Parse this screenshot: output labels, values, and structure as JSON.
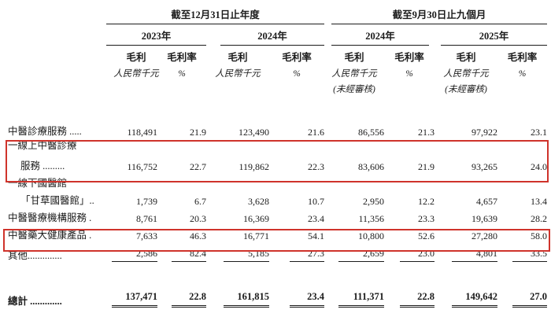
{
  "colors": {
    "text": "#1b1b1b",
    "highlight_red": "#cf332b",
    "rule": "#1b1b1b",
    "background": "#ffffff"
  },
  "header": {
    "group1": {
      "title": "截至12月31日止年度",
      "years": [
        "2023年",
        "2024年"
      ]
    },
    "group2": {
      "title": "截至9月30日止九個月",
      "years": [
        "2024年",
        "2025年"
      ]
    },
    "gross_profit_label": "毛利",
    "margin_label": "毛利率",
    "currency_label": "人民幣千元",
    "percent_label": "%",
    "unaudited_label": "(未經審核)"
  },
  "table": {
    "rows": [
      {
        "label": "中醫診療服務 .....",
        "values": [
          "118,491",
          "21.9",
          "123,490",
          "21.6",
          "86,556",
          "21.3",
          "97,922",
          "23.1"
        ],
        "highlighted": false
      },
      {
        "label": "一線上中醫診療",
        "label2": "服務 .........",
        "values": [
          "116,752",
          "22.7",
          "119,862",
          "22.3",
          "83,606",
          "21.9",
          "93,265",
          "24.0"
        ],
        "highlighted": true
      },
      {
        "label": "一線下國醫館",
        "label2": "「甘草國醫館」..",
        "values": [
          "1,739",
          "6.7",
          "3,628",
          "10.7",
          "2,950",
          "12.2",
          "4,657",
          "13.4"
        ],
        "highlighted": false
      },
      {
        "label": "中醫醫療機構服務 .",
        "values": [
          "8,761",
          "20.3",
          "16,369",
          "23.4",
          "11,356",
          "23.3",
          "19,639",
          "28.2"
        ],
        "highlighted": false
      },
      {
        "label": "中醫藥大健康產品 .",
        "values": [
          "7,633",
          "46.3",
          "16,771",
          "54.1",
          "10,800",
          "52.6",
          "27,280",
          "58.0"
        ],
        "highlighted": true
      },
      {
        "label": "其他..............",
        "values": [
          "2,586",
          "82.4",
          "5,185",
          "27.3",
          "2,659",
          "23.0",
          "4,801",
          "33.5"
        ],
        "highlighted": false
      }
    ],
    "total": {
      "label": "總計 .............",
      "values": [
        "137,471",
        "22.8",
        "161,815",
        "23.4",
        "111,371",
        "22.8",
        "149,642",
        "27.0"
      ]
    }
  }
}
